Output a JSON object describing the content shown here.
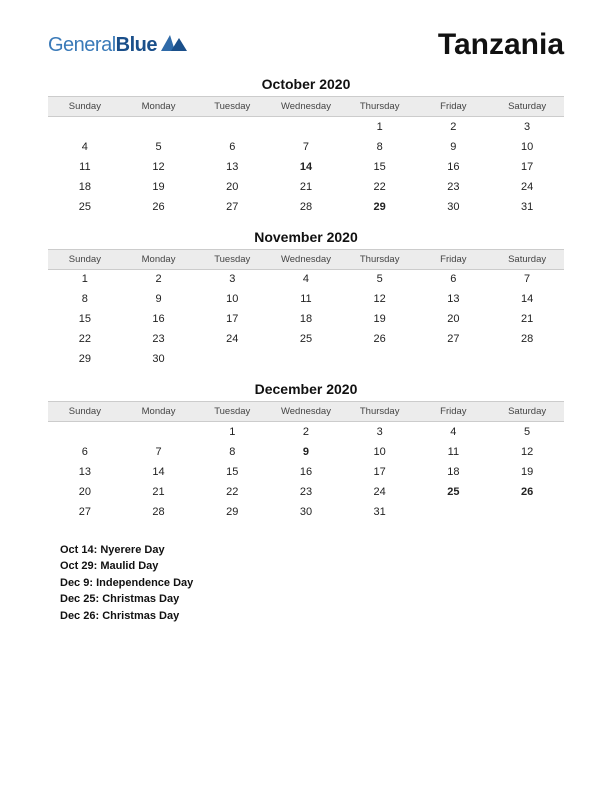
{
  "logo": {
    "part1": "General",
    "part2": "Blue"
  },
  "country": "Tanzania",
  "day_headers": [
    "Sunday",
    "Monday",
    "Tuesday",
    "Wednesday",
    "Thursday",
    "Friday",
    "Saturday"
  ],
  "styles": {
    "page_bg": "#ffffff",
    "header_bg": "#ececec",
    "header_border": "#cccccc",
    "text_color": "#222222",
    "holiday_color": "#c62828",
    "logo_color1": "#3a7ab8",
    "logo_color2": "#1a4f8a",
    "title_fontsize": 14,
    "dayhead_fontsize": 9.5,
    "cell_fontsize": 11,
    "country_fontsize": 30
  },
  "months": [
    {
      "title": "October 2020",
      "weeks": [
        [
          null,
          null,
          null,
          null,
          {
            "d": 1
          },
          {
            "d": 2
          },
          {
            "d": 3
          }
        ],
        [
          {
            "d": 4
          },
          {
            "d": 5
          },
          {
            "d": 6
          },
          {
            "d": 7
          },
          {
            "d": 8
          },
          {
            "d": 9
          },
          {
            "d": 10
          }
        ],
        [
          {
            "d": 11
          },
          {
            "d": 12
          },
          {
            "d": 13
          },
          {
            "d": 14,
            "h": true
          },
          {
            "d": 15
          },
          {
            "d": 16
          },
          {
            "d": 17
          }
        ],
        [
          {
            "d": 18
          },
          {
            "d": 19
          },
          {
            "d": 20
          },
          {
            "d": 21
          },
          {
            "d": 22
          },
          {
            "d": 23
          },
          {
            "d": 24
          }
        ],
        [
          {
            "d": 25
          },
          {
            "d": 26
          },
          {
            "d": 27
          },
          {
            "d": 28
          },
          {
            "d": 29,
            "h": true
          },
          {
            "d": 30
          },
          {
            "d": 31
          }
        ]
      ]
    },
    {
      "title": "November 2020",
      "weeks": [
        [
          {
            "d": 1
          },
          {
            "d": 2
          },
          {
            "d": 3
          },
          {
            "d": 4
          },
          {
            "d": 5
          },
          {
            "d": 6
          },
          {
            "d": 7
          }
        ],
        [
          {
            "d": 8
          },
          {
            "d": 9
          },
          {
            "d": 10
          },
          {
            "d": 11
          },
          {
            "d": 12
          },
          {
            "d": 13
          },
          {
            "d": 14
          }
        ],
        [
          {
            "d": 15
          },
          {
            "d": 16
          },
          {
            "d": 17
          },
          {
            "d": 18
          },
          {
            "d": 19
          },
          {
            "d": 20
          },
          {
            "d": 21
          }
        ],
        [
          {
            "d": 22
          },
          {
            "d": 23
          },
          {
            "d": 24
          },
          {
            "d": 25
          },
          {
            "d": 26
          },
          {
            "d": 27
          },
          {
            "d": 28
          }
        ],
        [
          {
            "d": 29
          },
          {
            "d": 30
          },
          null,
          null,
          null,
          null,
          null
        ]
      ]
    },
    {
      "title": "December 2020",
      "weeks": [
        [
          null,
          null,
          {
            "d": 1
          },
          {
            "d": 2
          },
          {
            "d": 3
          },
          {
            "d": 4
          },
          {
            "d": 5
          }
        ],
        [
          {
            "d": 6
          },
          {
            "d": 7
          },
          {
            "d": 8
          },
          {
            "d": 9,
            "h": true
          },
          {
            "d": 10
          },
          {
            "d": 11
          },
          {
            "d": 12
          }
        ],
        [
          {
            "d": 13
          },
          {
            "d": 14
          },
          {
            "d": 15
          },
          {
            "d": 16
          },
          {
            "d": 17
          },
          {
            "d": 18
          },
          {
            "d": 19
          }
        ],
        [
          {
            "d": 20
          },
          {
            "d": 21
          },
          {
            "d": 22
          },
          {
            "d": 23
          },
          {
            "d": 24
          },
          {
            "d": 25,
            "h": true
          },
          {
            "d": 26,
            "h": true
          }
        ],
        [
          {
            "d": 27
          },
          {
            "d": 28
          },
          {
            "d": 29
          },
          {
            "d": 30
          },
          {
            "d": 31
          },
          null,
          null
        ]
      ]
    }
  ],
  "holidays_list": [
    "Oct 14: Nyerere Day",
    "Oct 29: Maulid Day",
    "Dec 9: Independence Day",
    "Dec 25: Christmas Day",
    "Dec 26: Christmas Day"
  ]
}
